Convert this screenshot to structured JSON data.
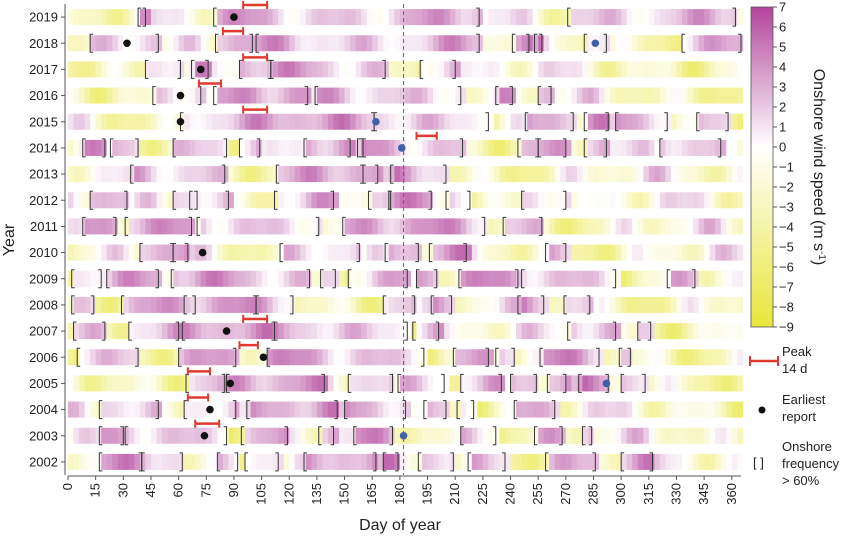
{
  "chart_data": {
    "type": "heatmap",
    "title": "",
    "xlabel": "Day of year",
    "ylabel": "Year",
    "xlim": [
      0,
      365
    ],
    "x_ticks": [
      0,
      15,
      30,
      45,
      60,
      75,
      90,
      105,
      120,
      135,
      150,
      165,
      180,
      195,
      210,
      225,
      240,
      255,
      270,
      285,
      300,
      315,
      330,
      345,
      360
    ],
    "years": [
      2019,
      2018,
      2017,
      2016,
      2015,
      2014,
      2013,
      2012,
      2011,
      2010,
      2009,
      2008,
      2007,
      2006,
      2005,
      2004,
      2003,
      2002
    ],
    "reference_line_day": 182,
    "colorbar": {
      "label": "Onshore wind speed (m s",
      "label_superscript": "-1",
      "label_close": ")",
      "range": [
        -9,
        7
      ],
      "ticks": [
        -9,
        -8,
        -7,
        -6,
        -5,
        -4,
        -3,
        -2,
        -1,
        0,
        1,
        2,
        3,
        4,
        5,
        6,
        7
      ],
      "tick_labels": [
        "−9",
        "−8",
        "−7",
        "−6",
        "−5",
        "−4",
        "−3",
        "−2",
        "−1",
        "0",
        "1",
        "2",
        "3",
        "4",
        "5",
        "6",
        "7"
      ],
      "colors": [
        "#e8e63a",
        "#ffffff",
        "#b2459b"
      ]
    },
    "colors": {
      "peak": "#e03a2e",
      "earliest_black": "#111111",
      "earliest_blue": "#3f5fa8",
      "bracket": "#333333"
    },
    "legend": {
      "peak_line1": "Peak",
      "peak_line2": "14 d",
      "earliest_line1": "Earliest",
      "earliest_line2": "report",
      "onshore_symbol": "[ ]",
      "onshore_line1": "Onshore",
      "onshore_line2": "frequency",
      "onshore_line3": "> 60%"
    },
    "rows": [
      {
        "year": 2019,
        "periods": [
          [
            38,
            42
          ],
          [
            79,
            223
          ],
          [
            271,
            362
          ]
        ],
        "peak": [
          95,
          108
        ],
        "earliest": [
          {
            "day": 90,
            "color": "black"
          }
        ]
      },
      {
        "year": 2018,
        "periods": [
          [
            12,
            49
          ],
          [
            80,
            100
          ],
          [
            102,
            223
          ],
          [
            241,
            250
          ],
          [
            253,
            257
          ],
          [
            280,
            292
          ],
          [
            333,
            365
          ]
        ],
        "peak": [
          84,
          95
        ],
        "earliest": [
          {
            "day": 32,
            "color": "black"
          },
          {
            "day": 286,
            "color": "blue"
          }
        ]
      },
      {
        "year": 2017,
        "periods": [
          [
            42,
            61
          ],
          [
            67,
            76
          ],
          [
            93,
            110
          ],
          [
            110,
            172
          ],
          [
            191,
            210
          ]
        ],
        "peak": [
          95,
          108
        ],
        "earliest": [
          {
            "day": 72,
            "color": "black"
          }
        ]
      },
      {
        "year": 2016,
        "periods": [
          [
            46,
            72
          ],
          [
            79,
            130
          ],
          [
            134,
            213
          ],
          [
            232,
            241
          ],
          [
            255,
            262
          ]
        ],
        "peak": [
          71,
          83
        ],
        "earliest": [
          {
            "day": 61,
            "color": "black"
          }
        ]
      },
      {
        "year": 2015,
        "periods": [
          [
            61,
            166
          ],
          [
            166,
            228
          ],
          [
            248,
            274
          ],
          [
            280,
            293
          ],
          [
            297,
            325
          ],
          [
            341,
            358
          ]
        ],
        "peak": [
          95,
          108
        ],
        "earliest": [
          {
            "day": 61,
            "color": "black"
          },
          {
            "day": 167,
            "color": "blue"
          }
        ]
      },
      {
        "year": 2014,
        "periods": [
          [
            8,
            20
          ],
          [
            23,
            38
          ],
          [
            57,
            86
          ],
          [
            93,
            104
          ],
          [
            128,
            153
          ],
          [
            157,
            160
          ],
          [
            160,
            214
          ],
          [
            244,
            255
          ],
          [
            255,
            270
          ],
          [
            280,
            292
          ],
          [
            321,
            354
          ]
        ],
        "peak": [
          189,
          200
        ],
        "earliest": [
          {
            "day": 181,
            "color": "blue"
          }
        ]
      },
      {
        "year": 2013,
        "periods": [
          [
            34,
            85
          ],
          [
            113,
            160
          ],
          [
            160,
            168
          ],
          [
            175,
            205
          ]
        ],
        "peak": null,
        "earliest": []
      },
      {
        "year": 2012,
        "periods": [
          [
            12,
            32
          ],
          [
            57,
            70
          ],
          [
            66,
            87
          ],
          [
            112,
            144
          ],
          [
            163,
            175
          ],
          [
            174,
            197
          ],
          [
            205,
            218
          ],
          [
            246,
            270
          ]
        ],
        "peak": null,
        "earliest": []
      },
      {
        "year": 2011,
        "periods": [
          [
            8,
            26
          ],
          [
            31,
            67
          ],
          [
            70,
            136
          ],
          [
            149,
            226
          ],
          [
            236,
            257
          ]
        ],
        "peak": null,
        "earliest": []
      },
      {
        "year": 2010,
        "periods": [
          [
            39,
            57
          ],
          [
            57,
            65
          ],
          [
            115,
            158
          ],
          [
            172,
            190
          ],
          [
            196,
            216
          ],
          [
            259,
            270
          ]
        ],
        "peak": null,
        "earliest": [
          {
            "day": 73,
            "color": "black"
          }
        ]
      },
      {
        "year": 2009,
        "periods": [
          [
            2,
            18
          ],
          [
            21,
            49
          ],
          [
            56,
            131
          ],
          [
            137,
            145
          ],
          [
            152,
            184
          ],
          [
            189,
            200
          ],
          [
            212,
            244
          ],
          [
            246,
            297
          ],
          [
            325,
            340
          ]
        ],
        "peak": null,
        "earliest": []
      },
      {
        "year": 2008,
        "periods": [
          [
            2,
            14
          ],
          [
            29,
            69
          ],
          [
            63,
            102
          ],
          [
            102,
            122
          ],
          [
            171,
            188
          ],
          [
            197,
            208
          ],
          [
            244,
            258
          ],
          [
            269,
            283
          ]
        ],
        "peak": null,
        "earliest": []
      },
      {
        "year": 2007,
        "periods": [
          [
            3,
            20
          ],
          [
            33,
            60
          ],
          [
            62,
            112
          ],
          [
            112,
            184
          ],
          [
            187,
            201
          ],
          [
            271,
            297
          ],
          [
            309,
            316
          ]
        ],
        "peak": [
          95,
          108
        ],
        "earliest": [
          {
            "day": 86,
            "color": "black"
          }
        ]
      },
      {
        "year": 2006,
        "periods": [
          [
            5,
            38
          ],
          [
            60,
            91
          ],
          [
            108,
            193
          ],
          [
            209,
            228
          ],
          [
            232,
            242
          ],
          [
            256,
            288
          ],
          [
            299,
            305
          ]
        ],
        "peak": [
          93,
          103
        ],
        "earliest": [
          {
            "day": 106,
            "color": "black"
          }
        ]
      },
      {
        "year": 2005,
        "periods": [
          [
            64,
            85
          ],
          [
            86,
            139
          ],
          [
            152,
            176
          ],
          [
            179,
            204
          ],
          [
            213,
            235
          ],
          [
            240,
            254
          ],
          [
            260,
            270
          ],
          [
            277,
            293
          ],
          [
            300,
            313
          ]
        ],
        "peak": [
          65,
          77
        ],
        "earliest": [
          {
            "day": 88,
            "color": "black"
          },
          {
            "day": 292,
            "color": "blue"
          }
        ]
      },
      {
        "year": 2004,
        "periods": [
          [
            17,
            49
          ],
          [
            63,
            91
          ],
          [
            97,
            146
          ],
          [
            150,
            183
          ],
          [
            193,
            205
          ],
          [
            211,
            220
          ],
          [
            242,
            264
          ]
        ],
        "peak": [
          65,
          76
        ],
        "earliest": [
          {
            "day": 77,
            "color": "black"
          }
        ]
      },
      {
        "year": 2003,
        "periods": [
          [
            17,
            30
          ],
          [
            31,
            86
          ],
          [
            94,
            119
          ],
          [
            136,
            144
          ],
          [
            155,
            176
          ],
          [
            213,
            232
          ],
          [
            253,
            268
          ],
          [
            279,
            284
          ]
        ],
        "peak": [
          69,
          82
        ],
        "earliest": [
          {
            "day": 74,
            "color": "black"
          },
          {
            "day": 182,
            "color": "blue"
          }
        ]
      },
      {
        "year": 2002,
        "periods": [
          [
            17,
            40
          ],
          [
            40,
            62
          ],
          [
            81,
            92
          ],
          [
            96,
            114
          ],
          [
            128,
            167
          ],
          [
            171,
            179
          ],
          [
            190,
            209
          ],
          [
            217,
            237
          ],
          [
            259,
            286
          ],
          [
            300,
            317
          ]
        ],
        "peak": null,
        "earliest": []
      }
    ]
  }
}
